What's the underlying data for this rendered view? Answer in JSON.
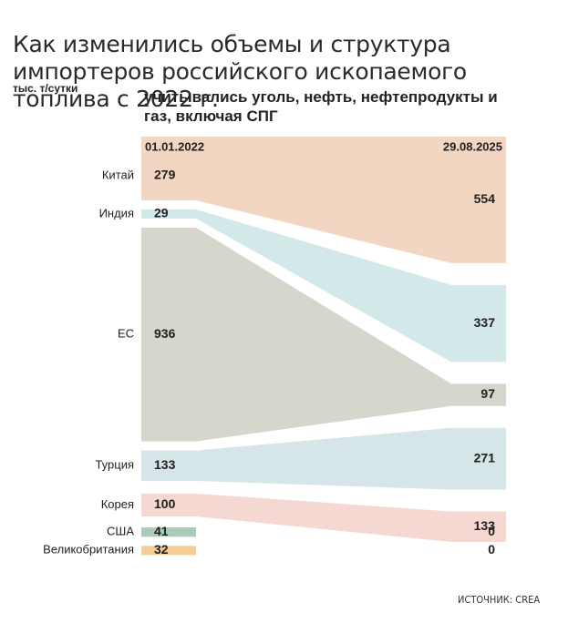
{
  "title": "Как изменились объемы и структура импортеров российского ископаемого топлива с 2022 г.",
  "unit": "тыс. т/сутки",
  "subtitle": "учитывались уголь, нефть, нефтепродукты и газ, включая СПГ",
  "source": "ИСТОЧНИК: CREA",
  "chart_data": {
    "type": "sankey-comparison",
    "x_labels": [
      "01.01.2022",
      "29.08.2025"
    ],
    "series": [
      {
        "name": "Китай",
        "values": [
          279,
          554
        ],
        "color": "#f3d6c2"
      },
      {
        "name": "Индия",
        "values": [
          29,
          337
        ],
        "color": "#d2e8e9"
      },
      {
        "name": "ЕС",
        "values": [
          936,
          97
        ],
        "color": "#d7d6cc"
      },
      {
        "name": "Турция",
        "values": [
          133,
          271
        ],
        "color": "#d6e5e7"
      },
      {
        "name": "Корея",
        "values": [
          100,
          133
        ],
        "color": "#f5d8d2"
      },
      {
        "name": "США",
        "values": [
          41,
          0
        ],
        "color": "#aacbb7"
      },
      {
        "name": "Великобритания",
        "values": [
          32,
          0
        ],
        "color": "#f3cc96"
      }
    ]
  }
}
